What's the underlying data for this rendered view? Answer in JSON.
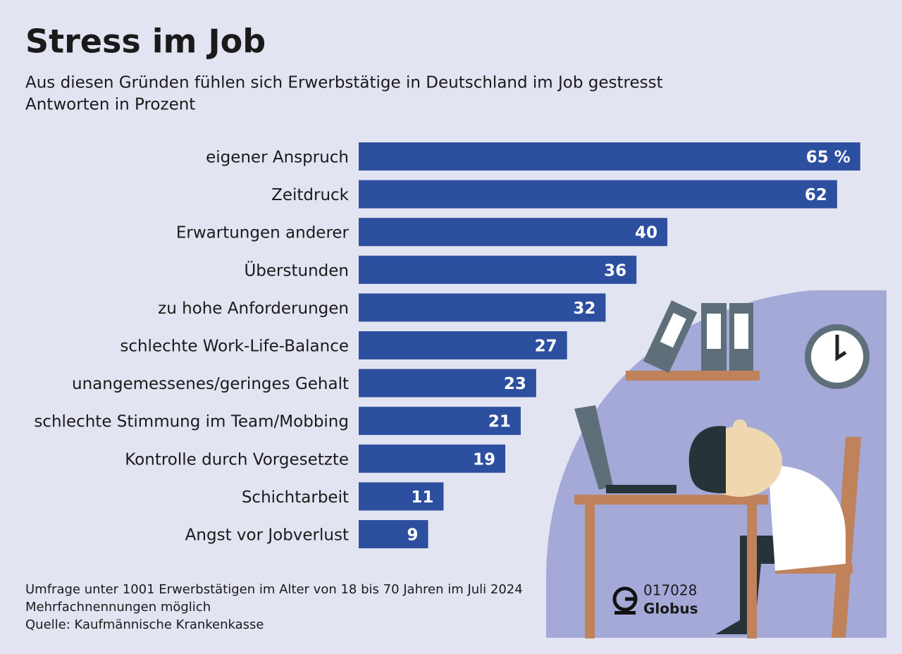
{
  "chart_data": {
    "type": "bar",
    "title": "Stress im Job",
    "subtitle": [
      "Aus diesen Gründen fühlen sich Erwerbstätige in Deutschland im Job gestresst",
      "Antworten in Prozent"
    ],
    "categories": [
      "eigener Anspruch",
      "Zeitdruck",
      "Erwartungen anderer",
      "Überstunden",
      "zu hohe Anforderungen",
      "schlechte Work-Life-Balance",
      "unangemessenes/geringes Gehalt",
      "schlechte Stimmung im Team/Mobbing",
      "Kontrolle durch Vorgesetzte",
      "Schichtarbeit",
      "Angst vor Jobverlust"
    ],
    "values": [
      65,
      62,
      40,
      36,
      32,
      27,
      23,
      21,
      19,
      11,
      9
    ],
    "value_labels": [
      "65 %",
      "62",
      "40",
      "36",
      "32",
      "27",
      "23",
      "21",
      "19",
      "11",
      "9"
    ],
    "color": "#2d4f9f",
    "notes": [
      "Umfrage unter 1001 Erwerbstätigen im Alter von 18 bis 70 Jahren im Juli 2024",
      "Mehrfachnennungen möglich",
      "Quelle: Kaufmännische Krankenkasse"
    ],
    "logo": {
      "code": "017028",
      "brand": "Globus"
    }
  }
}
